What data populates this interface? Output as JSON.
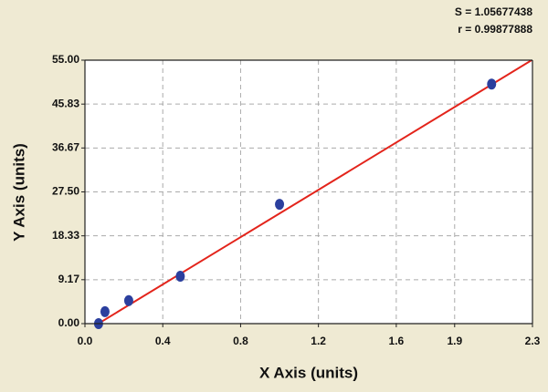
{
  "chart_data": {
    "type": "scatter",
    "annotations": [
      "S = 1.05677438",
      "r = 0.99877888"
    ],
    "x_label": "X Axis (units)",
    "y_label": "Y Axis (units)",
    "x": [
      0.07,
      0.103,
      0.225,
      0.49,
      1.0,
      2.09
    ],
    "values": [
      0,
      2.5,
      4.8,
      9.9,
      24.9,
      50.0
    ],
    "color": "#2b3f9e",
    "fit": {
      "x": [
        0.0,
        2.3
      ],
      "values": [
        -1.7,
        55.1
      ],
      "color": "#e3241b"
    },
    "xlim": [
      0,
      2.3
    ],
    "xticks": [
      {
        "value": 0,
        "label": "0.0"
      },
      0.4,
      0.8,
      1.2,
      1.6,
      1.9,
      2.3
    ],
    "ylim": [
      0,
      55
    ],
    "yticks": [
      {
        "value": 0,
        "label": "0.00"
      },
      9.17,
      18.33,
      {
        "value": 27.5,
        "label": "27.50"
      },
      36.67,
      45.83,
      {
        "value": 55,
        "label": "55.00"
      }
    ],
    "grid": true
  }
}
